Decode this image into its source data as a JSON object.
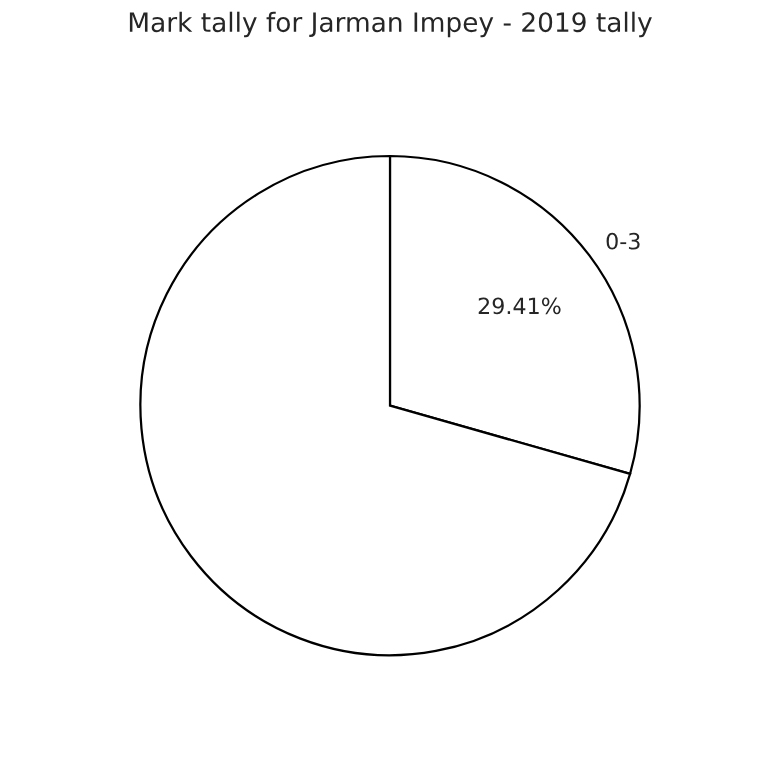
{
  "chart_data": {
    "type": "pie",
    "title": "Mark tally for Jarman Impey - 2019 tally",
    "categories": [
      "0-3",
      null
    ],
    "values": [
      29.41,
      70.59
    ],
    "colors": [
      "#ffffff",
      "#ffffff"
    ],
    "value_labels": [
      "29.41%",
      null
    ]
  }
}
